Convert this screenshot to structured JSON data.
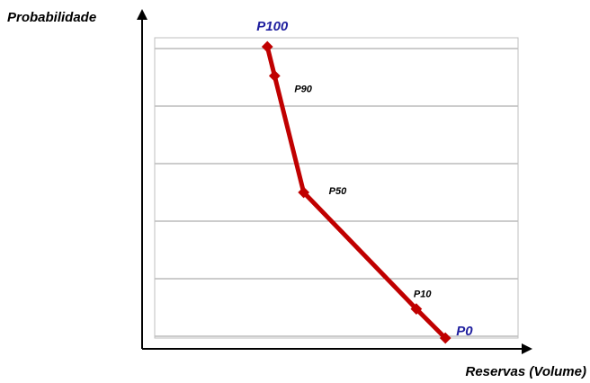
{
  "chart_data": {
    "type": "line",
    "title": "",
    "xlabel": "Reservas (Volume)",
    "ylabel": "Probabilidade",
    "xlim": [
      0,
      100
    ],
    "ylim": [
      0,
      100
    ],
    "grid": true,
    "series": [
      {
        "color": "#c00000",
        "points": [
          {
            "x": 31,
            "y": 100,
            "label": "P100"
          },
          {
            "x": 33,
            "y": 90,
            "label": "P90"
          },
          {
            "x": 41,
            "y": 50,
            "label": "P50"
          },
          {
            "x": 72,
            "y": 10,
            "label": "P10"
          },
          {
            "x": 80,
            "y": 0,
            "label": "P0"
          }
        ]
      }
    ],
    "label_colors": {
      "emphasis": "#1f1f9f",
      "normal": "#000000"
    }
  }
}
